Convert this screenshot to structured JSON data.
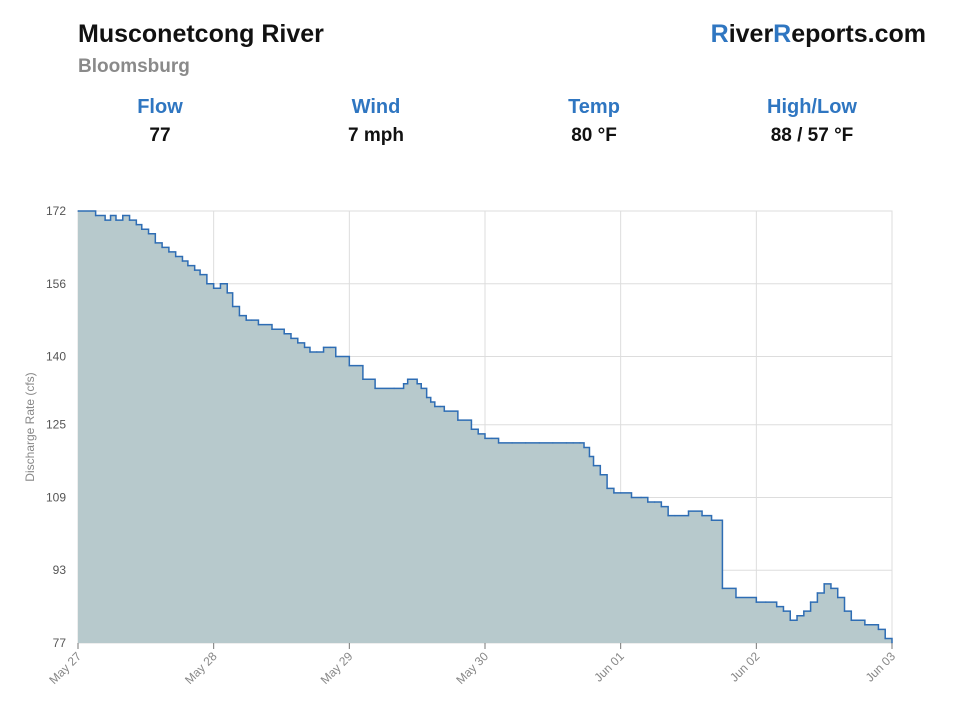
{
  "header": {
    "title": "Musconetcong River",
    "subtitle": "Bloomsburg",
    "brand_r1": "R",
    "brand_part1": "iver",
    "brand_r2": "R",
    "brand_part2": "eports.com"
  },
  "stats": [
    {
      "label": "Flow",
      "value": "77"
    },
    {
      "label": "Wind",
      "value": "7 mph"
    },
    {
      "label": "Temp",
      "value": "80 °F"
    },
    {
      "label": "High/Low",
      "value": "88 / 57 °F"
    }
  ],
  "colors": {
    "accent": "#2f76c1",
    "fill": "#b7c9cc",
    "line": "#2e6db4",
    "grid": "#dddddd"
  },
  "chart_data": {
    "type": "area",
    "title": "",
    "xlabel": "",
    "ylabel": "Discharge Rate (cfs)",
    "ylim": [
      77,
      172
    ],
    "y_ticks": [
      77,
      93,
      109,
      125,
      140,
      156,
      172
    ],
    "x_ticks": [
      "May 27",
      "May 28",
      "May 29",
      "May 30",
      "Jun 01",
      "Jun 02",
      "Jun 03"
    ],
    "x_range_days": [
      0,
      6
    ],
    "grid": true,
    "legend": "none",
    "series": [
      {
        "x": [
          0,
          0.13,
          0.2,
          0.24,
          0.28,
          0.33,
          0.38,
          0.43,
          0.47,
          0.52,
          0.57,
          0.62,
          0.67,
          0.72,
          0.77,
          0.81,
          0.86,
          0.9,
          0.95,
          1.0,
          1.05,
          1.1,
          1.14,
          1.19,
          1.24,
          1.28,
          1.33,
          1.43,
          1.52,
          1.57,
          1.62,
          1.67,
          1.71,
          1.76,
          1.81,
          1.86,
          1.9,
          2.0,
          2.1,
          2.19,
          2.33,
          2.4,
          2.43,
          2.47,
          2.5,
          2.53,
          2.57,
          2.6,
          2.63,
          2.67,
          2.7,
          2.8,
          2.9,
          2.95,
          3.0,
          3.05,
          3.1,
          3.2,
          3.3,
          3.4,
          3.5,
          3.6,
          3.65,
          3.7,
          3.73,
          3.77,
          3.8,
          3.85,
          3.9,
          3.95,
          4.0,
          4.08,
          4.15,
          4.2,
          4.25,
          4.3,
          4.35,
          4.4,
          4.5,
          4.6,
          4.67,
          4.75,
          4.85,
          5.0,
          5.07,
          5.15,
          5.2,
          5.25,
          5.3,
          5.35,
          5.4,
          5.45,
          5.5,
          5.55,
          5.6,
          5.65,
          5.7,
          5.8,
          5.9,
          5.95,
          6.0
        ],
        "y": [
          172,
          171,
          170,
          171,
          170,
          171,
          170,
          169,
          168,
          167,
          165,
          164,
          163,
          162,
          161,
          160,
          159,
          158,
          156,
          155,
          156,
          154,
          151,
          149,
          148,
          148,
          147,
          146,
          145,
          144,
          143,
          142,
          141,
          141,
          142,
          142,
          140,
          138,
          135,
          133,
          133,
          134,
          135,
          135,
          134,
          133,
          131,
          130,
          129,
          129,
          128,
          126,
          124,
          123,
          122,
          122,
          121,
          121,
          121,
          121,
          121,
          121,
          121,
          121,
          120,
          118,
          116,
          114,
          111,
          110,
          110,
          109,
          109,
          108,
          108,
          107,
          105,
          105,
          106,
          105,
          104,
          89,
          87,
          86,
          86,
          85,
          84,
          82,
          83,
          84,
          86,
          88,
          90,
          89,
          87,
          84,
          82,
          81,
          80,
          78,
          77
        ]
      }
    ]
  }
}
